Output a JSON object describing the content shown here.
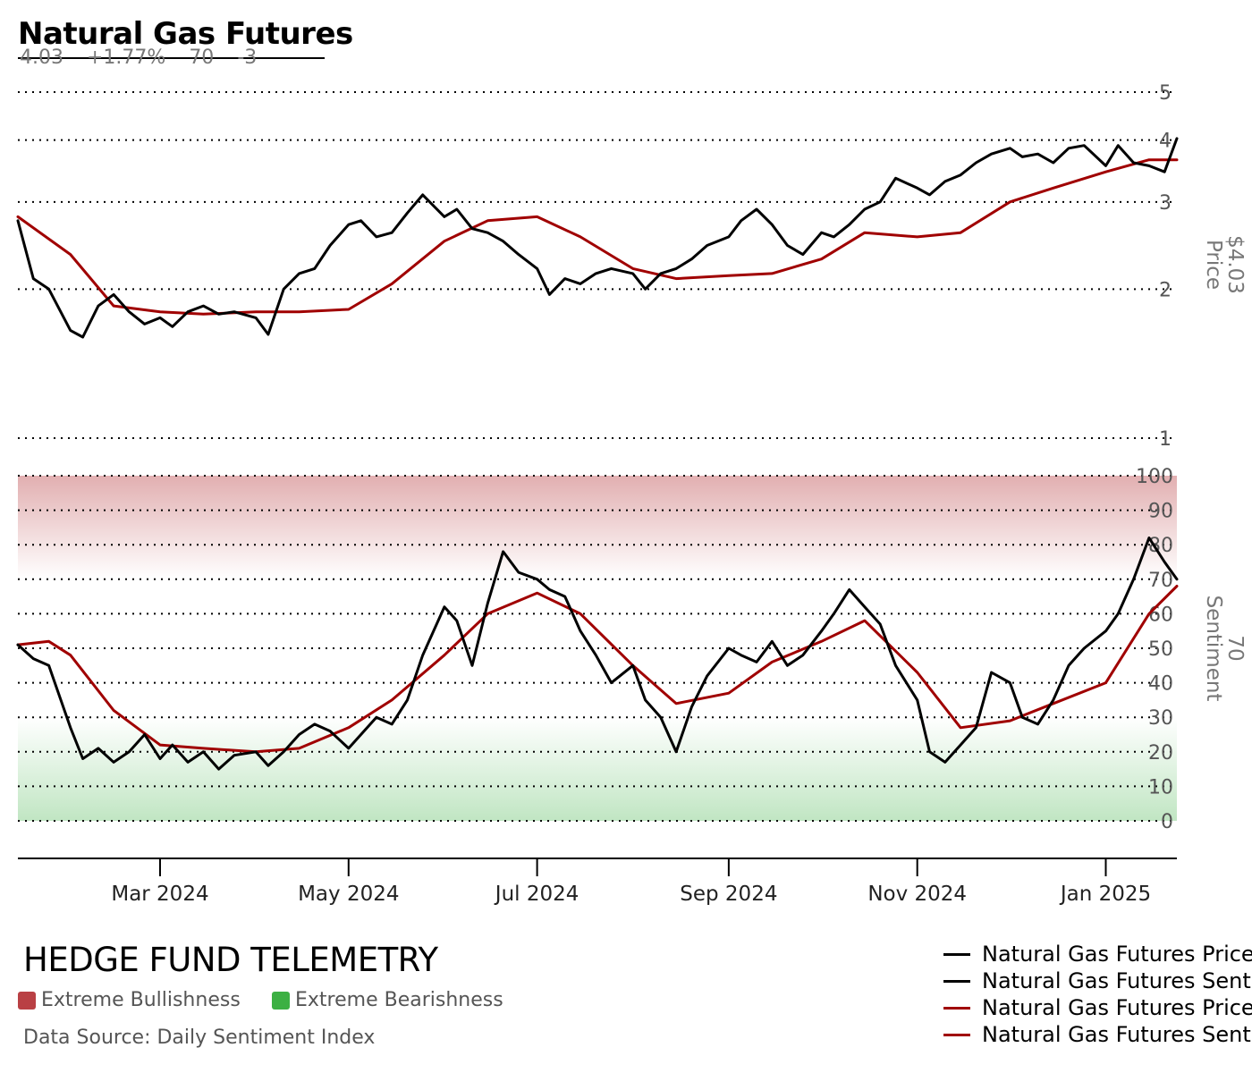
{
  "title": "Natural Gas Futures",
  "stats": {
    "price": "4.03",
    "change_pct": "+1.77%",
    "sentiment": "70",
    "sentiment_change": "-3"
  },
  "brand": "HEDGE FUND TELEMETRY",
  "zones": {
    "bullish_label": "Extreme Bullishness",
    "bearish_label": "Extreme Bearishness",
    "bullish_color": "#b94044",
    "bearish_color": "#3cb043"
  },
  "source": "Data Source: Daily Sentiment Index",
  "legend": [
    {
      "label": "Natural Gas Futures Price",
      "color": "#000000"
    },
    {
      "label": "Natural Gas Futures Sentiment",
      "color": "#000000"
    },
    {
      "label": "Natural Gas Futures Price SMA",
      "color": "#a00000"
    },
    {
      "label": "Natural Gas Futures Sentiment SMA",
      "color": "#a00000"
    }
  ],
  "colors": {
    "series": "#000000",
    "sma": "#a00000",
    "grid": "#000000",
    "axis_text": "#555555"
  },
  "chart_data": [
    {
      "type": "line",
      "panel": "price",
      "ylabel": "Price",
      "ylabel_value": "$4.03",
      "yscale": "log",
      "ylim": [
        1,
        5
      ],
      "yticks": [
        "1",
        "2",
        "3",
        "4",
        "5"
      ],
      "xlim": [
        "2024-01-15",
        "2025-01-24"
      ],
      "xticks": [
        "Mar 2024",
        "May 2024",
        "Jul 2024",
        "Sep 2024",
        "Nov 2024",
        "Jan 2025"
      ],
      "grid": true,
      "series": [
        {
          "name": "Natural Gas Futures Price",
          "x": [
            "2024-01-15",
            "2024-01-20",
            "2024-01-25",
            "2024-02-01",
            "2024-02-05",
            "2024-02-10",
            "2024-02-15",
            "2024-02-20",
            "2024-02-25",
            "2024-03-01",
            "2024-03-05",
            "2024-03-10",
            "2024-03-15",
            "2024-03-20",
            "2024-03-25",
            "2024-04-01",
            "2024-04-05",
            "2024-04-10",
            "2024-04-15",
            "2024-04-20",
            "2024-04-25",
            "2024-05-01",
            "2024-05-05",
            "2024-05-10",
            "2024-05-15",
            "2024-05-20",
            "2024-05-25",
            "2024-06-01",
            "2024-06-05",
            "2024-06-10",
            "2024-06-15",
            "2024-06-20",
            "2024-06-25",
            "2024-07-01",
            "2024-07-05",
            "2024-07-10",
            "2024-07-15",
            "2024-07-20",
            "2024-07-25",
            "2024-08-01",
            "2024-08-05",
            "2024-08-10",
            "2024-08-15",
            "2024-08-20",
            "2024-08-25",
            "2024-09-01",
            "2024-09-05",
            "2024-09-10",
            "2024-09-15",
            "2024-09-20",
            "2024-09-25",
            "2024-10-01",
            "2024-10-05",
            "2024-10-10",
            "2024-10-15",
            "2024-10-20",
            "2024-10-25",
            "2024-11-01",
            "2024-11-05",
            "2024-11-10",
            "2024-11-15",
            "2024-11-20",
            "2024-11-25",
            "2024-12-01",
            "2024-12-05",
            "2024-12-10",
            "2024-12-15",
            "2024-12-20",
            "2024-12-25",
            "2025-01-01",
            "2025-01-05",
            "2025-01-10",
            "2025-01-15",
            "2025-01-20",
            "2025-01-24"
          ],
          "values": [
            2.75,
            2.1,
            2.0,
            1.65,
            1.6,
            1.85,
            1.95,
            1.8,
            1.7,
            1.75,
            1.68,
            1.8,
            1.85,
            1.78,
            1.8,
            1.75,
            1.62,
            2.0,
            2.15,
            2.2,
            2.45,
            2.7,
            2.75,
            2.55,
            2.6,
            2.85,
            3.1,
            2.8,
            2.9,
            2.65,
            2.6,
            2.5,
            2.35,
            2.2,
            1.95,
            2.1,
            2.05,
            2.15,
            2.2,
            2.15,
            2.0,
            2.15,
            2.2,
            2.3,
            2.45,
            2.55,
            2.75,
            2.9,
            2.7,
            2.45,
            2.35,
            2.6,
            2.55,
            2.7,
            2.9,
            3.0,
            3.35,
            3.2,
            3.1,
            3.3,
            3.4,
            3.6,
            3.75,
            3.85,
            3.7,
            3.75,
            3.6,
            3.85,
            3.9,
            3.55,
            3.9,
            3.6,
            3.55,
            3.45,
            4.03
          ]
        },
        {
          "name": "Natural Gas Futures Price SMA",
          "x": [
            "2024-01-15",
            "2024-02-01",
            "2024-02-15",
            "2024-03-01",
            "2024-03-15",
            "2024-04-01",
            "2024-04-15",
            "2024-05-01",
            "2024-05-15",
            "2024-06-01",
            "2024-06-15",
            "2024-07-01",
            "2024-07-15",
            "2024-08-01",
            "2024-08-15",
            "2024-09-01",
            "2024-09-15",
            "2024-10-01",
            "2024-10-15",
            "2024-11-01",
            "2024-11-15",
            "2024-12-01",
            "2024-12-15",
            "2025-01-01",
            "2025-01-15",
            "2025-01-24"
          ],
          "values": [
            2.8,
            2.35,
            1.85,
            1.8,
            1.78,
            1.8,
            1.8,
            1.82,
            2.05,
            2.5,
            2.75,
            2.8,
            2.55,
            2.2,
            2.1,
            2.13,
            2.15,
            2.3,
            2.6,
            2.55,
            2.6,
            3.0,
            3.2,
            3.45,
            3.65,
            3.65
          ]
        }
      ]
    },
    {
      "type": "line",
      "panel": "sentiment",
      "ylabel": "Sentiment",
      "ylabel_value": "70",
      "ylim": [
        0,
        100
      ],
      "yticks": [
        "0",
        "10",
        "20",
        "30",
        "40",
        "50",
        "60",
        "70",
        "80",
        "90",
        "100"
      ],
      "zones": [
        {
          "label": "Extreme Bullishness",
          "from": 70,
          "to": 100
        },
        {
          "label": "Extreme Bearishness",
          "from": 0,
          "to": 30
        }
      ],
      "grid": true,
      "series": [
        {
          "name": "Natural Gas Futures Sentiment",
          "x": [
            "2024-01-15",
            "2024-01-20",
            "2024-01-25",
            "2024-02-01",
            "2024-02-05",
            "2024-02-10",
            "2024-02-15",
            "2024-02-20",
            "2024-02-25",
            "2024-03-01",
            "2024-03-05",
            "2024-03-10",
            "2024-03-15",
            "2024-03-20",
            "2024-03-25",
            "2024-04-01",
            "2024-04-05",
            "2024-04-10",
            "2024-04-15",
            "2024-04-20",
            "2024-04-25",
            "2024-05-01",
            "2024-05-05",
            "2024-05-10",
            "2024-05-15",
            "2024-05-20",
            "2024-05-25",
            "2024-06-01",
            "2024-06-05",
            "2024-06-10",
            "2024-06-15",
            "2024-06-20",
            "2024-06-25",
            "2024-07-01",
            "2024-07-05",
            "2024-07-10",
            "2024-07-15",
            "2024-07-20",
            "2024-07-25",
            "2024-08-01",
            "2024-08-05",
            "2024-08-10",
            "2024-08-15",
            "2024-08-20",
            "2024-08-25",
            "2024-09-01",
            "2024-09-05",
            "2024-09-10",
            "2024-09-15",
            "2024-09-20",
            "2024-09-25",
            "2024-10-01",
            "2024-10-05",
            "2024-10-10",
            "2024-10-15",
            "2024-10-20",
            "2024-10-25",
            "2024-11-01",
            "2024-11-05",
            "2024-11-10",
            "2024-11-15",
            "2024-11-20",
            "2024-11-25",
            "2024-12-01",
            "2024-12-05",
            "2024-12-10",
            "2024-12-15",
            "2024-12-20",
            "2024-12-25",
            "2025-01-01",
            "2025-01-05",
            "2025-01-10",
            "2025-01-15",
            "2025-01-20",
            "2025-01-24"
          ],
          "values": [
            51,
            47,
            45,
            27,
            18,
            21,
            17,
            20,
            25,
            18,
            22,
            17,
            20,
            15,
            19,
            20,
            16,
            20,
            25,
            28,
            26,
            21,
            25,
            30,
            28,
            35,
            48,
            62,
            58,
            45,
            63,
            78,
            72,
            70,
            67,
            65,
            55,
            48,
            40,
            45,
            35,
            30,
            20,
            33,
            42,
            50,
            48,
            46,
            52,
            45,
            48,
            55,
            60,
            67,
            62,
            57,
            45,
            35,
            20,
            17,
            22,
            27,
            43,
            40,
            30,
            28,
            35,
            45,
            50,
            55,
            60,
            70,
            82,
            75,
            70
          ]
        },
        {
          "name": "Natural Gas Futures Sentiment SMA",
          "x": [
            "2024-01-15",
            "2024-01-25",
            "2024-02-01",
            "2024-02-15",
            "2024-03-01",
            "2024-03-15",
            "2024-04-01",
            "2024-04-15",
            "2024-05-01",
            "2024-05-15",
            "2024-06-01",
            "2024-06-15",
            "2024-07-01",
            "2024-07-15",
            "2024-08-01",
            "2024-08-15",
            "2024-09-01",
            "2024-09-15",
            "2024-10-01",
            "2024-10-15",
            "2024-11-01",
            "2024-11-15",
            "2024-12-01",
            "2024-12-15",
            "2025-01-01",
            "2025-01-15",
            "2025-01-24"
          ],
          "values": [
            51,
            52,
            48,
            32,
            22,
            21,
            20,
            21,
            27,
            35,
            48,
            60,
            66,
            60,
            45,
            34,
            37,
            46,
            52,
            58,
            43,
            27,
            29,
            34,
            40,
            60,
            68
          ]
        }
      ]
    }
  ]
}
